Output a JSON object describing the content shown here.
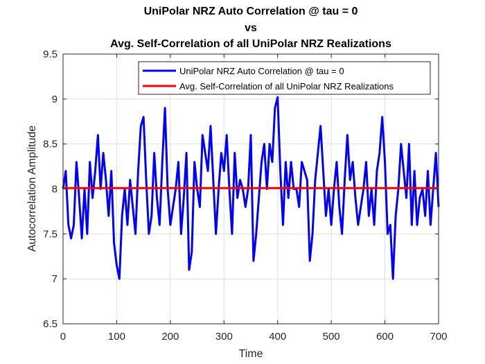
{
  "chart_data": {
    "type": "line",
    "title_lines": [
      "UniPolar NRZ Auto Correlation @ tau = 0",
      "vs",
      "Avg. Self-Correlation of all UniPolar NRZ Realizations"
    ],
    "xlabel": "Time",
    "ylabel": "Autocorrelation Amplitude",
    "xlim": [
      0,
      700
    ],
    "ylim": [
      6.5,
      9.5
    ],
    "xticks": [
      0,
      100,
      200,
      300,
      400,
      500,
      600,
      700
    ],
    "xtick_labels": [
      "0",
      "100",
      "200",
      "300",
      "400",
      "500",
      "600",
      "700"
    ],
    "yticks": [
      6.5,
      7,
      7.5,
      8,
      8.5,
      9,
      9.5
    ],
    "ytick_labels": [
      "6.5",
      "7",
      "7.5",
      "8",
      "8.5",
      "9",
      "9.5"
    ],
    "grid": true,
    "legend_position": "top-right",
    "series": [
      {
        "name": "UniPolar NRZ Auto Correlation @ tau = 0",
        "color": "#0000ff",
        "x": [
          0,
          5,
          10,
          15,
          20,
          25,
          30,
          35,
          40,
          45,
          50,
          55,
          60,
          65,
          70,
          75,
          80,
          85,
          90,
          95,
          100,
          105,
          110,
          115,
          120,
          125,
          130,
          135,
          140,
          145,
          150,
          155,
          160,
          165,
          170,
          175,
          180,
          185,
          190,
          195,
          200,
          205,
          210,
          215,
          220,
          225,
          230,
          235,
          240,
          245,
          250,
          255,
          260,
          265,
          270,
          275,
          280,
          285,
          290,
          295,
          300,
          305,
          310,
          315,
          320,
          325,
          330,
          335,
          340,
          345,
          350,
          355,
          360,
          365,
          370,
          375,
          380,
          385,
          390,
          395,
          400,
          405,
          410,
          415,
          420,
          425,
          430,
          435,
          440,
          445,
          450,
          455,
          460,
          465,
          470,
          475,
          480,
          485,
          490,
          495,
          500,
          505,
          510,
          515,
          520,
          525,
          530,
          535,
          540,
          545,
          550,
          555,
          560,
          565,
          570,
          575,
          580,
          585,
          590,
          595,
          600,
          605,
          610,
          615,
          620,
          625,
          630,
          635,
          640,
          645,
          650,
          655,
          660,
          665,
          670,
          675,
          680,
          685,
          690,
          695,
          700
        ],
        "y": [
          8.0,
          8.2,
          7.6,
          7.45,
          7.6,
          8.3,
          7.9,
          7.45,
          8.0,
          7.5,
          8.3,
          7.9,
          8.2,
          8.6,
          8.0,
          8.4,
          8.1,
          7.7,
          8.2,
          7.4,
          7.15,
          7.0,
          7.7,
          8.0,
          7.6,
          8.1,
          7.8,
          7.5,
          8.2,
          8.7,
          8.8,
          8.1,
          7.5,
          7.7,
          8.4,
          7.9,
          7.6,
          8.3,
          8.9,
          8.0,
          7.6,
          7.8,
          8.0,
          8.3,
          7.5,
          7.9,
          8.4,
          7.1,
          7.3,
          8.3,
          8.0,
          7.8,
          8.6,
          8.4,
          8.2,
          8.7,
          8.1,
          7.5,
          8.0,
          8.4,
          8.2,
          8.6,
          8.0,
          7.5,
          8.4,
          7.9,
          8.1,
          8.0,
          7.8,
          8.0,
          8.6,
          7.2,
          7.5,
          7.9,
          8.3,
          8.5,
          8.0,
          8.5,
          8.3,
          8.9,
          9.02,
          8.2,
          7.6,
          8.3,
          7.9,
          8.3,
          8.0,
          8.0,
          7.8,
          8.3,
          8.2,
          8.1,
          7.2,
          7.5,
          8.1,
          8.4,
          8.7,
          8.2,
          7.7,
          8.0,
          7.6,
          8.0,
          8.3,
          7.8,
          7.5,
          8.1,
          8.6,
          8.1,
          8.3,
          7.9,
          7.6,
          7.8,
          8.0,
          8.3,
          7.7,
          8.0,
          7.6,
          8.2,
          8.4,
          8.8,
          8.3,
          7.5,
          7.6,
          7.0,
          7.7,
          8.0,
          8.5,
          8.2,
          7.9,
          8.5,
          7.6,
          8.2,
          7.6,
          7.9,
          8.0,
          7.7,
          8.2,
          7.6,
          8.0,
          8.4,
          7.8
        ],
        "data_name": "autocorr-line"
      },
      {
        "name": "Avg. Self-Correlation of all UniPolar NRZ Realizations",
        "color": "#ff0000",
        "x": [
          0,
          700
        ],
        "y": [
          8.01,
          8.01
        ],
        "data_name": "avg-self-corr-line"
      }
    ]
  }
}
